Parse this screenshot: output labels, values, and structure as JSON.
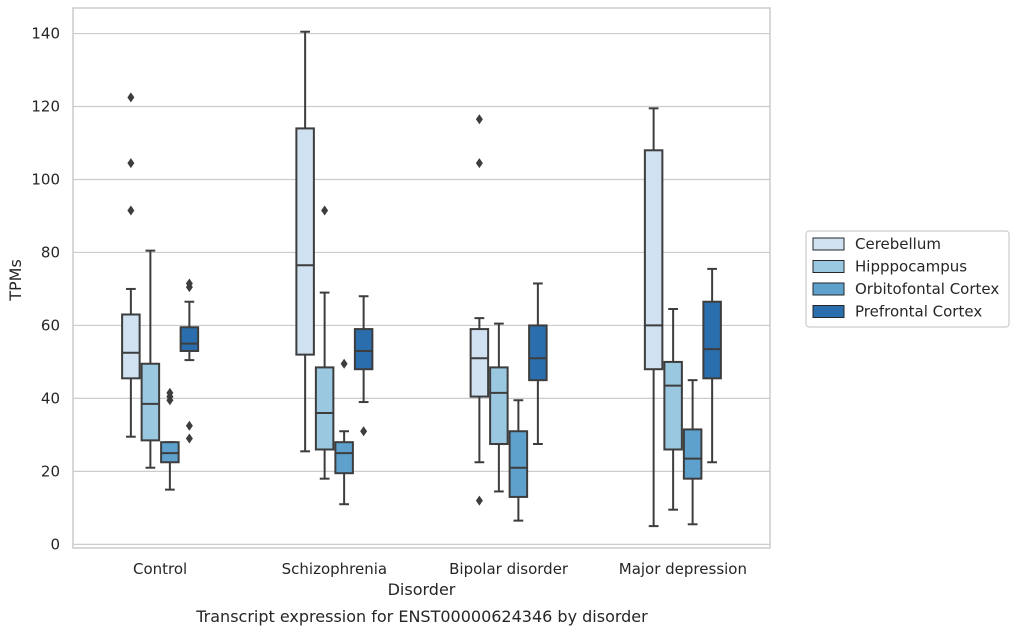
{
  "caption": "Transcript expression for ENST00000624346 by disorder",
  "chart_data": {
    "type": "box",
    "xlabel": "Disorder",
    "ylabel": "TPMs",
    "ylim": [
      -1,
      147
    ],
    "yticks": [
      0,
      20,
      40,
      60,
      80,
      100,
      120,
      140
    ],
    "grid": "horizontal",
    "legend_position": "right",
    "categories": [
      "Control",
      "Schizophrenia",
      "Bipolar disorder",
      "Major depression"
    ],
    "series": [
      {
        "name": "Cerebellum",
        "color": "#d0e1f2",
        "boxes": [
          {
            "whislo": 29.5,
            "q1": 45.5,
            "med": 52.5,
            "q3": 63,
            "whishi": 70,
            "fliers": [
              91.5,
              104.5,
              122.5
            ]
          },
          {
            "whislo": 25.5,
            "q1": 52,
            "med": 76.5,
            "q3": 114,
            "whishi": 140.5,
            "fliers": []
          },
          {
            "whislo": 22.5,
            "q1": 40.5,
            "med": 51,
            "q3": 59,
            "whishi": 62,
            "fliers": [
              12,
              104.5,
              116.5
            ]
          },
          {
            "whislo": 5,
            "q1": 48,
            "med": 60,
            "q3": 108,
            "whishi": 119.5,
            "fliers": []
          }
        ]
      },
      {
        "name": "Hipppocampus",
        "color": "#9ac8e0",
        "boxes": [
          {
            "whislo": 21,
            "q1": 28.5,
            "med": 38.5,
            "q3": 49.5,
            "whishi": 80.5,
            "fliers": []
          },
          {
            "whislo": 18,
            "q1": 26,
            "med": 36,
            "q3": 48.5,
            "whishi": 69,
            "fliers": [
              91.5
            ]
          },
          {
            "whislo": 14.5,
            "q1": 27.5,
            "med": 41.5,
            "q3": 48.5,
            "whishi": 60.5,
            "fliers": []
          },
          {
            "whislo": 9.5,
            "q1": 26,
            "med": 43.5,
            "q3": 50,
            "whishi": 64.5,
            "fliers": []
          }
        ]
      },
      {
        "name": "Orbitofontal Cortex",
        "color": "#5fa1cd",
        "boxes": [
          {
            "whislo": 15,
            "q1": 22.5,
            "med": 25,
            "q3": 28,
            "whishi": 28,
            "fliers": [
              39.5,
              40.5,
              41.5
            ]
          },
          {
            "whislo": 11,
            "q1": 19.5,
            "med": 25,
            "q3": 28,
            "whishi": 31,
            "fliers": [
              49.5
            ]
          },
          {
            "whislo": 6.5,
            "q1": 13,
            "med": 21,
            "q3": 31,
            "whishi": 39.5,
            "fliers": []
          },
          {
            "whislo": 5.5,
            "q1": 18,
            "med": 23.5,
            "q3": 31.5,
            "whishi": 45,
            "fliers": []
          }
        ]
      },
      {
        "name": "Prefrontal Cortex",
        "color": "#2b6ead",
        "boxes": [
          {
            "whislo": 50.5,
            "q1": 53,
            "med": 55,
            "q3": 59.5,
            "whishi": 66.5,
            "fliers": [
              29,
              32.5,
              70.5,
              71.5
            ]
          },
          {
            "whislo": 39,
            "q1": 48,
            "med": 53,
            "q3": 59,
            "whishi": 68,
            "fliers": [
              31
            ]
          },
          {
            "whislo": 27.5,
            "q1": 45,
            "med": 51,
            "q3": 60,
            "whishi": 71.5,
            "fliers": []
          },
          {
            "whislo": 22.5,
            "q1": 45.5,
            "med": 53.5,
            "q3": 66.5,
            "whishi": 75.5,
            "fliers": []
          }
        ]
      }
    ]
  }
}
